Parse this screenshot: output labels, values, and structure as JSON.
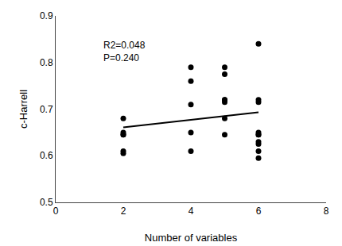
{
  "chart_data": {
    "type": "scatter",
    "xlabel": "Number of variables",
    "ylabel": "c-Harrell",
    "annotation": "R2=0.048\nP=0.240",
    "series": [
      {
        "type": "scatter",
        "color": "#000000",
        "marker": "circle",
        "x": [
          2,
          2,
          2,
          2,
          2,
          2,
          4,
          4,
          4,
          4,
          4,
          5,
          5,
          5,
          5,
          5,
          5,
          5,
          6,
          6,
          6,
          6,
          6,
          6,
          6,
          6,
          6,
          6
        ],
        "values": [
          0.68,
          0.65,
          0.645,
          0.645,
          0.61,
          0.605,
          0.79,
          0.76,
          0.71,
          0.65,
          0.61,
          0.79,
          0.775,
          0.72,
          0.72,
          0.715,
          0.68,
          0.645,
          0.84,
          0.72,
          0.715,
          0.65,
          0.645,
          0.645,
          0.63,
          0.625,
          0.61,
          0.595
        ]
      },
      {
        "type": "line",
        "color": "#000000",
        "line_style": "solid",
        "x": [
          2,
          6
        ],
        "values": [
          0.660862167,
          0.693023256
        ]
      }
    ],
    "xlim": [
      0,
      8
    ],
    "ylim": [
      0.5,
      0.9
    ],
    "xticks": [
      0,
      2,
      4,
      6,
      8
    ],
    "yticks": [
      0.5,
      0.6,
      0.7,
      0.8,
      0.9
    ],
    "grid": false
  }
}
